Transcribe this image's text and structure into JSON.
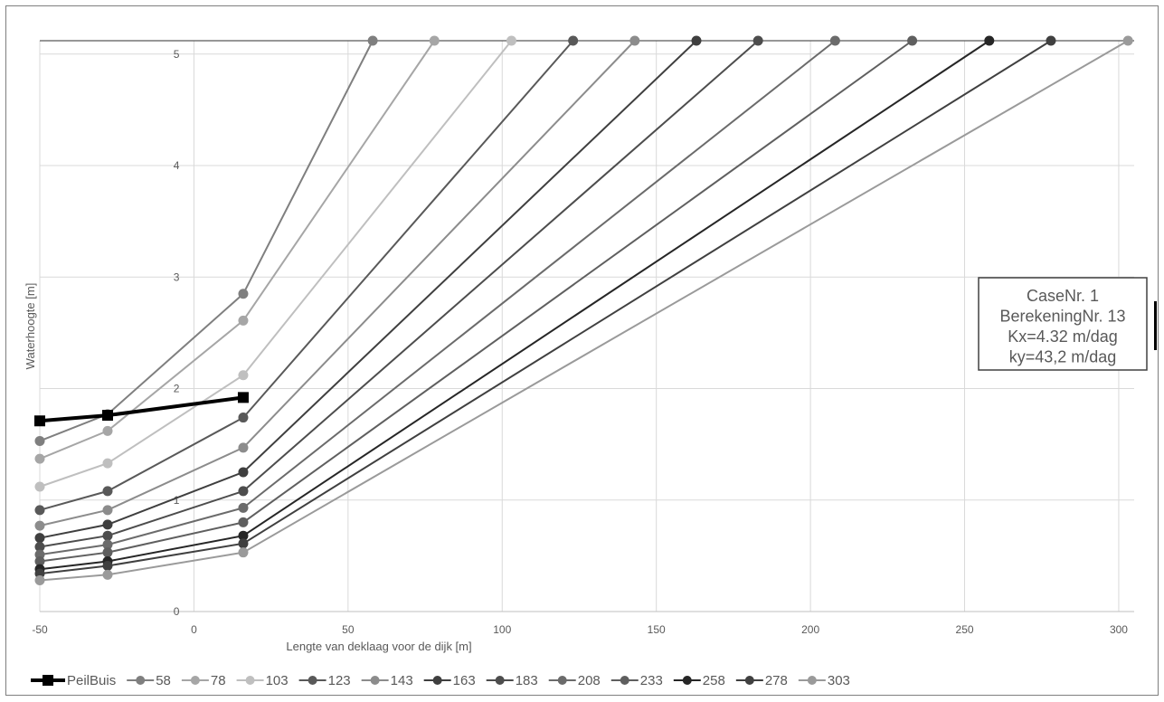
{
  "chart_data": {
    "type": "line",
    "title": "",
    "xlabel": "Lengte van deklaag voor de dijk [m]",
    "ylabel": "Waterhoogte [m]",
    "xlim": [
      -50,
      305
    ],
    "ylim": [
      0,
      5.12
    ],
    "xticks": [
      -50,
      0,
      50,
      100,
      150,
      200,
      250,
      300
    ],
    "yticks": [
      0,
      1,
      2,
      3,
      4,
      5
    ],
    "grid": true,
    "legend_position": "bottom",
    "info_box": [
      "CaseNr. 1",
      "BerekeningNr. 13",
      "Kx=4.32 m/dag",
      "ky=43,2 m/dag"
    ],
    "series": [
      {
        "name": "PeilBuis",
        "color": "#000000",
        "marker": "square",
        "x": [
          -50,
          -28,
          16
        ],
        "y": [
          1.71,
          1.76,
          1.92
        ]
      },
      {
        "name": "58",
        "color": "#7f7f7f",
        "marker": "circle",
        "x": [
          -50,
          -28,
          16,
          58
        ],
        "y": [
          1.53,
          1.77,
          2.85,
          5.12
        ]
      },
      {
        "name": "78",
        "color": "#a6a6a6",
        "marker": "circle",
        "x": [
          -50,
          -28,
          16,
          78
        ],
        "y": [
          1.37,
          1.62,
          2.61,
          5.12
        ]
      },
      {
        "name": "103",
        "color": "#bfbfbf",
        "marker": "circle",
        "x": [
          -50,
          -28,
          16,
          103
        ],
        "y": [
          1.12,
          1.33,
          2.12,
          5.12
        ]
      },
      {
        "name": "123",
        "color": "#595959",
        "marker": "circle",
        "x": [
          -50,
          -28,
          16,
          123
        ],
        "y": [
          0.91,
          1.08,
          1.74,
          5.12
        ]
      },
      {
        "name": "143",
        "color": "#8c8c8c",
        "marker": "circle",
        "x": [
          -50,
          -28,
          16,
          143
        ],
        "y": [
          0.77,
          0.91,
          1.47,
          5.12
        ]
      },
      {
        "name": "163",
        "color": "#3f3f3f",
        "marker": "circle",
        "x": [
          -50,
          -28,
          16,
          163
        ],
        "y": [
          0.66,
          0.78,
          1.25,
          5.12
        ]
      },
      {
        "name": "183",
        "color": "#4d4d4d",
        "marker": "circle",
        "x": [
          -50,
          -28,
          16,
          183
        ],
        "y": [
          0.58,
          0.68,
          1.08,
          5.12
        ]
      },
      {
        "name": "208",
        "color": "#6b6b6b",
        "marker": "circle",
        "x": [
          -50,
          -28,
          16,
          208
        ],
        "y": [
          0.51,
          0.6,
          0.93,
          5.12
        ]
      },
      {
        "name": "233",
        "color": "#5f5f5f",
        "marker": "circle",
        "x": [
          -50,
          -28,
          16,
          233
        ],
        "y": [
          0.45,
          0.53,
          0.8,
          5.12
        ]
      },
      {
        "name": "258",
        "color": "#262626",
        "marker": "circle",
        "x": [
          -50,
          -28,
          16,
          258
        ],
        "y": [
          0.38,
          0.45,
          0.68,
          5.12
        ]
      },
      {
        "name": "278",
        "color": "#404040",
        "marker": "circle",
        "x": [
          -50,
          -28,
          16,
          278
        ],
        "y": [
          0.34,
          0.41,
          0.61,
          5.12
        ]
      },
      {
        "name": "303",
        "color": "#9a9a9a",
        "marker": "circle",
        "x": [
          -50,
          -28,
          16,
          303
        ],
        "y": [
          0.28,
          0.33,
          0.53,
          5.12
        ]
      }
    ]
  }
}
